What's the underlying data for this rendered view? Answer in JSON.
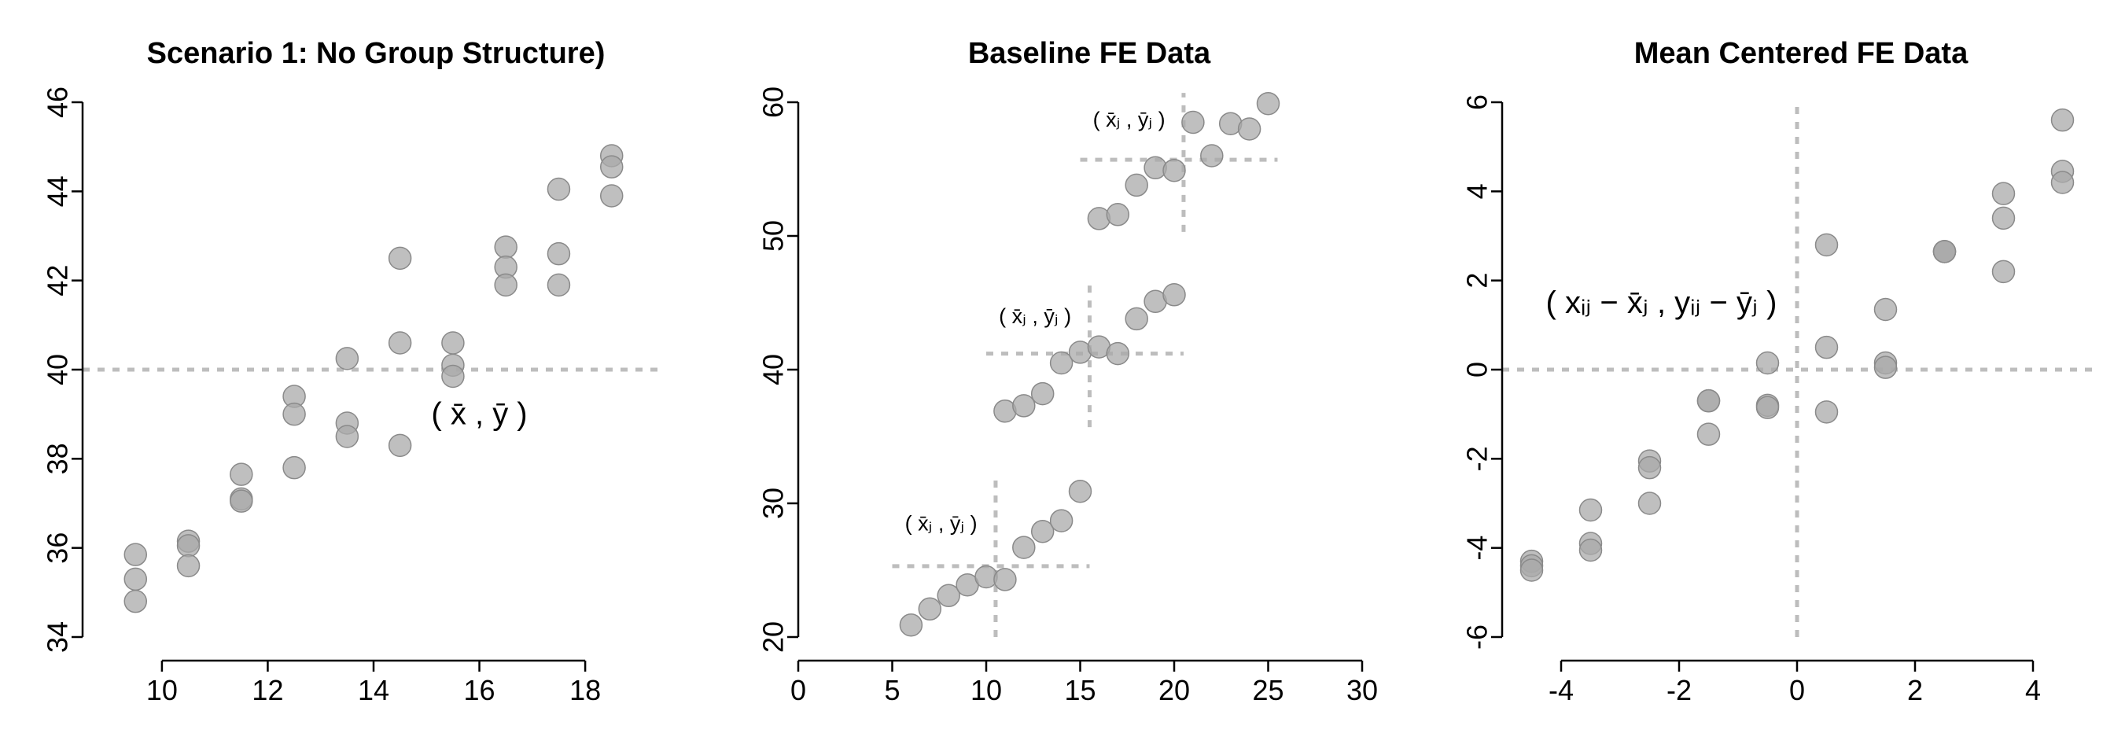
{
  "chart_data": [
    {
      "type": "scatter",
      "title": "Scenario 1: No Group Structure)",
      "xlim": [
        8.5,
        19.5
      ],
      "ylim": [
        34,
        46
      ],
      "x_ticks": [
        10,
        12,
        14,
        16,
        18
      ],
      "y_ticks": [
        34,
        36,
        38,
        40,
        42,
        44,
        46
      ],
      "points": [
        [
          9.5,
          35.85
        ],
        [
          9.5,
          35.3
        ],
        [
          9.5,
          34.8
        ],
        [
          10.5,
          36.15
        ],
        [
          10.5,
          36.05
        ],
        [
          10.5,
          35.6
        ],
        [
          11.5,
          37.65
        ],
        [
          11.5,
          37.1
        ],
        [
          11.5,
          37.05
        ],
        [
          12.5,
          39.4
        ],
        [
          12.5,
          39.0
        ],
        [
          12.5,
          37.8
        ],
        [
          13.5,
          40.25
        ],
        [
          13.5,
          38.8
        ],
        [
          13.5,
          38.5
        ],
        [
          14.5,
          42.5
        ],
        [
          14.5,
          40.6
        ],
        [
          14.5,
          38.3
        ],
        [
          15.5,
          40.6
        ],
        [
          15.5,
          40.1
        ],
        [
          15.5,
          39.85
        ],
        [
          16.5,
          42.75
        ],
        [
          16.5,
          42.3
        ],
        [
          16.5,
          41.9
        ],
        [
          17.5,
          44.05
        ],
        [
          17.5,
          42.6
        ],
        [
          17.5,
          41.9
        ],
        [
          18.5,
          44.8
        ],
        [
          18.5,
          44.55
        ],
        [
          18.5,
          43.9
        ]
      ],
      "reference_lines": [
        {
          "orientation": "horizontal",
          "value": 40
        }
      ],
      "annotations": [
        {
          "text": "( x̄ , ȳ )",
          "x": 16.0,
          "y": 39.0
        }
      ]
    },
    {
      "type": "scatter",
      "title": "Baseline FE Data",
      "xlim": [
        0,
        30
      ],
      "ylim": [
        20,
        60
      ],
      "x_ticks": [
        0,
        5,
        10,
        15,
        20,
        25,
        30
      ],
      "y_ticks": [
        20,
        30,
        40,
        50,
        60
      ],
      "points": [
        [
          6,
          20.9
        ],
        [
          7,
          22.1
        ],
        [
          8,
          23.1
        ],
        [
          9,
          23.9
        ],
        [
          10,
          24.5
        ],
        [
          11,
          24.3
        ],
        [
          12,
          26.7
        ],
        [
          13,
          27.9
        ],
        [
          14,
          28.7
        ],
        [
          15,
          30.9
        ],
        [
          11,
          36.9
        ],
        [
          12,
          37.3
        ],
        [
          13,
          38.2
        ],
        [
          14,
          40.5
        ],
        [
          15,
          41.3
        ],
        [
          16,
          41.7
        ],
        [
          17,
          41.2
        ],
        [
          18,
          43.8
        ],
        [
          19,
          45.1
        ],
        [
          20,
          45.6
        ],
        [
          16,
          51.3
        ],
        [
          17,
          51.6
        ],
        [
          18,
          53.8
        ],
        [
          19,
          55.1
        ],
        [
          20,
          54.9
        ],
        [
          21,
          58.5
        ],
        [
          22,
          56.0
        ],
        [
          23,
          58.4
        ],
        [
          24,
          58.0
        ],
        [
          25,
          59.9
        ]
      ],
      "reference_lines": [
        {
          "orientation": "horizontal",
          "value": 25.3,
          "from": 5,
          "to": 15.5
        },
        {
          "orientation": "vertical",
          "value": 10.5,
          "from": 20,
          "to": 31.8
        },
        {
          "orientation": "horizontal",
          "value": 41.2,
          "from": 10,
          "to": 20.5
        },
        {
          "orientation": "vertical",
          "value": 15.5,
          "from": 35.7,
          "to": 46.3
        },
        {
          "orientation": "horizontal",
          "value": 55.7,
          "from": 15,
          "to": 25.5
        },
        {
          "orientation": "vertical",
          "value": 20.5,
          "from": 50.3,
          "to": 60.7
        }
      ],
      "annotations": [
        {
          "text": "( x̄ⱼ , ȳⱼ )",
          "x": 7.6,
          "y": 28.5
        },
        {
          "text": "( x̄ⱼ , ȳⱼ )",
          "x": 12.6,
          "y": 44.0
        },
        {
          "text": "( x̄ⱼ , ȳⱼ )",
          "x": 17.6,
          "y": 58.7
        }
      ]
    },
    {
      "type": "scatter",
      "title": "Mean Centered FE Data",
      "xlim": [
        -5,
        5
      ],
      "ylim": [
        -6,
        6
      ],
      "x_ticks": [
        -4,
        -2,
        0,
        2,
        4
      ],
      "y_ticks": [
        -6,
        -4,
        -2,
        0,
        2,
        4,
        6
      ],
      "points": [
        [
          -4.5,
          -4.3
        ],
        [
          -4.5,
          -4.4
        ],
        [
          -4.5,
          -4.5
        ],
        [
          -3.5,
          -3.15
        ],
        [
          -3.5,
          -3.9
        ],
        [
          -3.5,
          -4.05
        ],
        [
          -2.5,
          -2.05
        ],
        [
          -2.5,
          -2.2
        ],
        [
          -2.5,
          -3.0
        ],
        [
          -1.5,
          -0.7
        ],
        [
          -1.5,
          -0.7
        ],
        [
          -1.5,
          -1.45
        ],
        [
          -0.5,
          0.15
        ],
        [
          -0.5,
          -0.8
        ],
        [
          -0.5,
          -0.85
        ],
        [
          0.5,
          2.8
        ],
        [
          0.5,
          0.5
        ],
        [
          0.5,
          -0.95
        ],
        [
          1.5,
          1.35
        ],
        [
          1.5,
          0.15
        ],
        [
          1.5,
          0.05
        ],
        [
          2.5,
          2.65
        ],
        [
          2.5,
          2.65
        ],
        [
          2.5,
          2.65
        ],
        [
          3.5,
          3.95
        ],
        [
          3.5,
          3.4
        ],
        [
          3.5,
          2.2
        ],
        [
          4.5,
          5.6
        ],
        [
          4.5,
          4.45
        ],
        [
          4.5,
          4.2
        ]
      ],
      "reference_lines": [
        {
          "orientation": "horizontal",
          "value": 0
        },
        {
          "orientation": "vertical",
          "value": 0
        }
      ],
      "annotations": [
        {
          "text": "( xᵢⱼ − x̄ⱼ , yᵢⱼ − ȳⱼ )",
          "x": -2.3,
          "y": 1.5
        }
      ]
    }
  ]
}
